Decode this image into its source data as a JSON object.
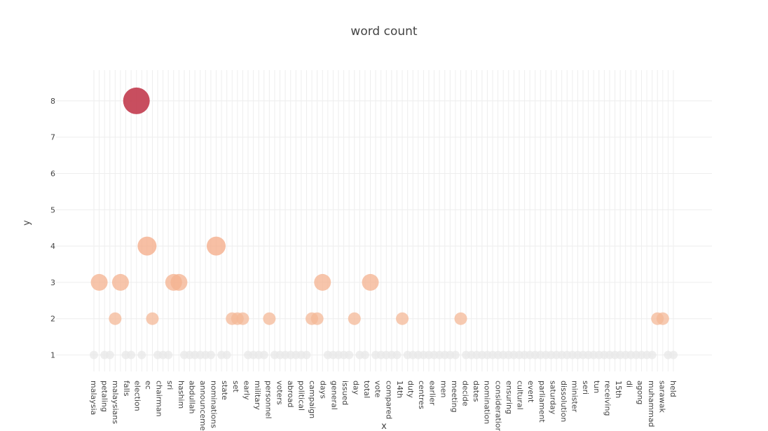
{
  "chart_data": {
    "type": "scatter",
    "title": "word count",
    "xlabel": "x",
    "ylabel": "y",
    "ylim": [
      0.7,
      8.9
    ],
    "yticks": [
      1,
      2,
      3,
      4,
      5,
      6,
      7,
      8
    ],
    "grid": true,
    "legend": "none",
    "marker": "bubble sized and colored by count",
    "color_scale": {
      "low": "#e8e8e8",
      "mid": "#f4a582",
      "high": "#c23b4e"
    },
    "x_labels": [
      "malaysia",
      "petaling",
      "malaysians",
      "falls",
      "election",
      "ec",
      "chairman",
      "sri",
      "hashim",
      "abdullah",
      "announcement",
      "nominations",
      "state",
      "set",
      "early",
      "military",
      "personnel",
      "voters",
      "abroad",
      "political",
      "campaign",
      "days",
      "general",
      "issued",
      "day",
      "total",
      "vote",
      "compared",
      "14th",
      "duty",
      "centres",
      "earlier",
      "men",
      "meeting",
      "decide",
      "dates",
      "nomination",
      "consideration",
      "ensuring",
      "cultural",
      "event",
      "parliament",
      "saturday",
      "dissolution",
      "minister",
      "seri",
      "tun",
      "receiving",
      "15th",
      "di",
      "agong",
      "muhammad",
      "sarawak",
      "held"
    ],
    "points": [
      {
        "label": "",
        "y": 1
      },
      {
        "label": "",
        "y": 3
      },
      {
        "label": "",
        "y": 1
      },
      {
        "label": "",
        "y": 1
      },
      {
        "label": "",
        "y": 2
      },
      {
        "label": "",
        "y": 3
      },
      {
        "label": "",
        "y": 1
      },
      {
        "label": "",
        "y": 1
      },
      {
        "label": "",
        "y": 8
      },
      {
        "label": "",
        "y": 1
      },
      {
        "label": "",
        "y": 4
      },
      {
        "label": "",
        "y": 2
      },
      {
        "label": "",
        "y": 1
      },
      {
        "label": "",
        "y": 1
      },
      {
        "label": "",
        "y": 1
      },
      {
        "label": "",
        "y": 3
      },
      {
        "label": "",
        "y": 3
      },
      {
        "label": "",
        "y": 1
      },
      {
        "label": "",
        "y": 1
      },
      {
        "label": "",
        "y": 1
      },
      {
        "label": "",
        "y": 1
      },
      {
        "label": "",
        "y": 1
      },
      {
        "label": "",
        "y": 1
      },
      {
        "label": "",
        "y": 4
      },
      {
        "label": "",
        "y": 1
      },
      {
        "label": "",
        "y": 1
      },
      {
        "label": "",
        "y": 2
      },
      {
        "label": "",
        "y": 2
      },
      {
        "label": "",
        "y": 2
      },
      {
        "label": "",
        "y": 1
      },
      {
        "label": "",
        "y": 1
      },
      {
        "label": "",
        "y": 1
      },
      {
        "label": "",
        "y": 1
      },
      {
        "label": "",
        "y": 2
      },
      {
        "label": "",
        "y": 1
      },
      {
        "label": "",
        "y": 1
      },
      {
        "label": "",
        "y": 1
      },
      {
        "label": "",
        "y": 1
      },
      {
        "label": "",
        "y": 1
      },
      {
        "label": "",
        "y": 1
      },
      {
        "label": "",
        "y": 1
      },
      {
        "label": "",
        "y": 2
      },
      {
        "label": "",
        "y": 2
      },
      {
        "label": "",
        "y": 3
      },
      {
        "label": "",
        "y": 1
      },
      {
        "label": "",
        "y": 1
      },
      {
        "label": "",
        "y": 1
      },
      {
        "label": "",
        "y": 1
      },
      {
        "label": "",
        "y": 1
      },
      {
        "label": "",
        "y": 2
      },
      {
        "label": "",
        "y": 1
      },
      {
        "label": "",
        "y": 1
      },
      {
        "label": "",
        "y": 3
      },
      {
        "label": "",
        "y": 1
      },
      {
        "label": "",
        "y": 1
      },
      {
        "label": "",
        "y": 1
      },
      {
        "label": "",
        "y": 1
      },
      {
        "label": "",
        "y": 1
      },
      {
        "label": "",
        "y": 2
      },
      {
        "label": "",
        "y": 1
      },
      {
        "label": "",
        "y": 1
      },
      {
        "label": "",
        "y": 1
      },
      {
        "label": "",
        "y": 1
      },
      {
        "label": "",
        "y": 1
      },
      {
        "label": "",
        "y": 1
      },
      {
        "label": "",
        "y": 1
      },
      {
        "label": "",
        "y": 1
      },
      {
        "label": "",
        "y": 1
      },
      {
        "label": "",
        "y": 1
      },
      {
        "label": "",
        "y": 2
      },
      {
        "label": "",
        "y": 1
      },
      {
        "label": "",
        "y": 1
      },
      {
        "label": "",
        "y": 1
      },
      {
        "label": "",
        "y": 1
      },
      {
        "label": "",
        "y": 1
      },
      {
        "label": "",
        "y": 1
      },
      {
        "label": "",
        "y": 1
      },
      {
        "label": "",
        "y": 1
      },
      {
        "label": "",
        "y": 1
      },
      {
        "label": "",
        "y": 1
      },
      {
        "label": "",
        "y": 1
      },
      {
        "label": "",
        "y": 1
      },
      {
        "label": "",
        "y": 1
      },
      {
        "label": "",
        "y": 1
      },
      {
        "label": "",
        "y": 1
      },
      {
        "label": "",
        "y": 1
      },
      {
        "label": "",
        "y": 1
      },
      {
        "label": "",
        "y": 1
      },
      {
        "label": "",
        "y": 1
      },
      {
        "label": "",
        "y": 1
      },
      {
        "label": "",
        "y": 1
      },
      {
        "label": "",
        "y": 1
      },
      {
        "label": "",
        "y": 1
      },
      {
        "label": "",
        "y": 1
      },
      {
        "label": "",
        "y": 1
      },
      {
        "label": "",
        "y": 1
      },
      {
        "label": "",
        "y": 1
      },
      {
        "label": "",
        "y": 1
      },
      {
        "label": "",
        "y": 1
      },
      {
        "label": "",
        "y": 1
      },
      {
        "label": "",
        "y": 1
      },
      {
        "label": "",
        "y": 1
      },
      {
        "label": "",
        "y": 1
      },
      {
        "label": "",
        "y": 1
      },
      {
        "label": "",
        "y": 1
      },
      {
        "label": "",
        "y": 1
      },
      {
        "label": "",
        "y": 2
      },
      {
        "label": "",
        "y": 2
      },
      {
        "label": "",
        "y": 1
      },
      {
        "label": "",
        "y": 1
      }
    ]
  }
}
